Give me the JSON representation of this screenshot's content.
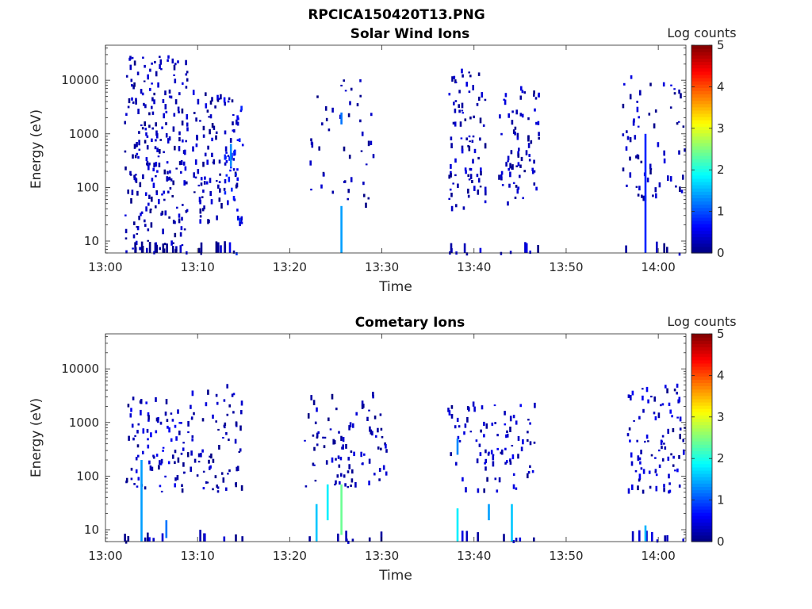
{
  "figure_title": "RPCICA150420T13.PNG",
  "colorbar": {
    "label": "Log counts",
    "ticks": [
      "0",
      "1",
      "2",
      "3",
      "4",
      "5"
    ],
    "min": 0,
    "max": 5,
    "colormap": "jet"
  },
  "chart_data": [
    {
      "type": "heatmap",
      "title": "Solar Wind Ions",
      "xlabel": "Time",
      "ylabel": "Energy (eV)",
      "yscale": "log",
      "xlim_minutes": [
        0,
        63
      ],
      "ylim": [
        6,
        45000
      ],
      "x_ticks": [
        {
          "label": "13:00",
          "v": 0
        },
        {
          "label": "13:10",
          "v": 10
        },
        {
          "label": "13:20",
          "v": 20
        },
        {
          "label": "13:30",
          "v": 30
        },
        {
          "label": "13:40",
          "v": 40
        },
        {
          "label": "13:50",
          "v": 50
        },
        {
          "label": "14:00",
          "v": 60
        }
      ],
      "y_ticks": [
        {
          "label": "10",
          "v": 10
        },
        {
          "label": "100",
          "v": 100
        },
        {
          "label": "1000",
          "v": 1000
        },
        {
          "label": "10000",
          "v": 10000
        }
      ],
      "clusters": [
        {
          "t": [
            2.0,
            8.8
          ],
          "e": [
            7,
            30000
          ],
          "n": 230,
          "c": [
            0,
            0.5
          ],
          "lowband": true
        },
        {
          "t": [
            9.4,
            12.5
          ],
          "e": [
            20,
            8000
          ],
          "n": 70,
          "c": [
            0,
            0.5
          ],
          "lowband": true
        },
        {
          "t": [
            12.8,
            14.8
          ],
          "e": [
            20,
            5000
          ],
          "n": 60,
          "c": [
            0,
            0.9
          ],
          "lowband": true
        },
        {
          "t": [
            22.0,
            29.5
          ],
          "e": [
            40,
            12000
          ],
          "n": 45,
          "c": [
            0,
            0.4
          ],
          "lowband": false
        },
        {
          "t": [
            37.2,
            41.2
          ],
          "e": [
            40,
            15000
          ],
          "n": 85,
          "c": [
            0,
            0.5
          ],
          "lowband": true
        },
        {
          "t": [
            42.6,
            47.0
          ],
          "e": [
            40,
            8000
          ],
          "n": 75,
          "c": [
            0,
            0.5
          ],
          "lowband": true
        },
        {
          "t": [
            56.0,
            62.8
          ],
          "e": [
            60,
            12000
          ],
          "n": 65,
          "c": [
            0,
            0.5
          ],
          "lowband": true
        }
      ],
      "spikes": [
        {
          "t": 25.5,
          "e": [
            6,
            45
          ],
          "c": 1.4
        },
        {
          "t": 25.5,
          "e": [
            1500,
            2500
          ],
          "c": 1.2
        },
        {
          "t": 13.5,
          "e": [
            250,
            650
          ],
          "c": 1.3
        },
        {
          "t": 58.5,
          "e": [
            6,
            1000
          ],
          "c": 0.8
        }
      ]
    },
    {
      "type": "heatmap",
      "title": "Cometary Ions",
      "xlabel": "Time",
      "ylabel": "Energy (eV)",
      "yscale": "log",
      "xlim_minutes": [
        0,
        63
      ],
      "ylim": [
        6,
        45000
      ],
      "x_ticks": [
        {
          "label": "13:00",
          "v": 0
        },
        {
          "label": "13:10",
          "v": 10
        },
        {
          "label": "13:20",
          "v": 20
        },
        {
          "label": "13:30",
          "v": 30
        },
        {
          "label": "13:40",
          "v": 40
        },
        {
          "label": "13:50",
          "v": 50
        },
        {
          "label": "14:00",
          "v": 60
        }
      ],
      "y_ticks": [
        {
          "label": "10",
          "v": 10
        },
        {
          "label": "100",
          "v": 100
        },
        {
          "label": "1000",
          "v": 1000
        },
        {
          "label": "10000",
          "v": 10000
        }
      ],
      "clusters": [
        {
          "t": [
            2.0,
            9.0
          ],
          "e": [
            50,
            3000
          ],
          "n": 90,
          "c": [
            0,
            0.6
          ],
          "lowband": true
        },
        {
          "t": [
            9.0,
            15.0
          ],
          "e": [
            50,
            5000
          ],
          "n": 70,
          "c": [
            0,
            0.5
          ],
          "lowband": true
        },
        {
          "t": [
            21.5,
            30.5
          ],
          "e": [
            60,
            3500
          ],
          "n": 90,
          "c": [
            0,
            0.5
          ],
          "lowband": true
        },
        {
          "t": [
            37.0,
            46.5
          ],
          "e": [
            50,
            2200
          ],
          "n": 90,
          "c": [
            0,
            0.6
          ],
          "lowband": true
        },
        {
          "t": [
            56.5,
            62.8
          ],
          "e": [
            50,
            5000
          ],
          "n": 90,
          "c": [
            0,
            0.6
          ],
          "lowband": true
        }
      ],
      "spikes": [
        {
          "t": 3.8,
          "e": [
            6,
            200
          ],
          "c": 1.4
        },
        {
          "t": 25.5,
          "e": [
            8,
            70
          ],
          "c": 2.4
        },
        {
          "t": 24.0,
          "e": [
            15,
            70
          ],
          "c": 1.8
        },
        {
          "t": 22.8,
          "e": [
            6,
            30
          ],
          "c": 1.6
        },
        {
          "t": 38.1,
          "e": [
            6,
            25
          ],
          "c": 1.8
        },
        {
          "t": 38.1,
          "e": [
            250,
            500
          ],
          "c": 1.3
        },
        {
          "t": 44.0,
          "e": [
            6,
            30
          ],
          "c": 1.6
        },
        {
          "t": 41.5,
          "e": [
            15,
            30
          ],
          "c": 1.4
        },
        {
          "t": 6.5,
          "e": [
            7,
            15
          ],
          "c": 1.2
        },
        {
          "t": 58.5,
          "e": [
            6,
            12
          ],
          "c": 1.5
        }
      ]
    }
  ]
}
